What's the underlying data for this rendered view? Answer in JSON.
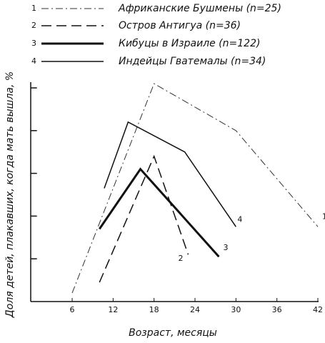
{
  "chart_data": {
    "type": "line",
    "xlabel": "Возраст, месяцы",
    "ylabel": "Доля детей, плакавших, когда мать вышла, %",
    "xlim": [
      0,
      42
    ],
    "xticks": [
      6,
      12,
      18,
      24,
      30,
      36,
      42
    ],
    "ylim": [
      0,
      5
    ],
    "yticks": [
      1,
      2,
      3,
      4,
      5
    ],
    "series": [
      {
        "label": "1",
        "name": "Африканские Бушмены (n=25)",
        "color": "#333333",
        "style": "dashdot",
        "width": 1,
        "x": [
          6,
          18,
          30,
          42
        ],
        "values": [
          0.2,
          5.1,
          4.0,
          1.75
        ]
      },
      {
        "label": "2",
        "name": "Остров Антигуа (n=36)",
        "color": "#111111",
        "style": "dashed",
        "width": 1.5,
        "x": [
          10,
          18,
          23
        ],
        "values": [
          0.45,
          3.4,
          1.1
        ]
      },
      {
        "label": "3",
        "name": "Кибуцы в Израиле (n=122)",
        "color": "#111111",
        "style": "solid",
        "width": 3,
        "x": [
          10,
          16,
          27.5
        ],
        "values": [
          1.7,
          3.1,
          1.05
        ]
      },
      {
        "label": "4",
        "name": "Индейцы Гватемалы (n=34)",
        "color": "#111111",
        "style": "solid",
        "width": 1.5,
        "x": [
          10.7,
          14.2,
          22.5,
          30
        ],
        "values": [
          2.65,
          4.2,
          3.5,
          1.75
        ]
      }
    ]
  }
}
